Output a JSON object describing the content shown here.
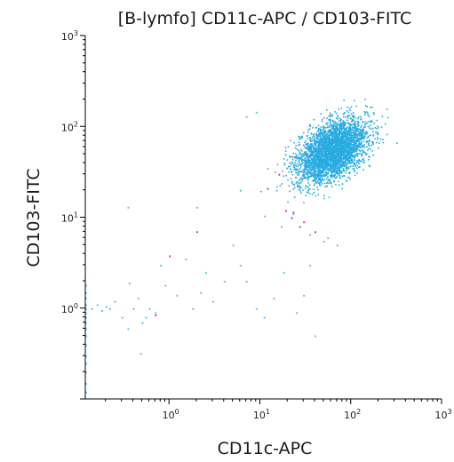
{
  "chart_data": {
    "type": "scatter",
    "title": "[B-lymfo] CD11c-APC / CD103-FITC",
    "xlabel": "CD11c-APC",
    "ylabel": "CD103-FITC",
    "x_scale": "log",
    "y_scale": "log",
    "xlim": [
      0.12,
      1000
    ],
    "ylim": [
      0.1,
      1000
    ],
    "grid": false,
    "x_ticks": [
      {
        "base": "10",
        "exp": "0",
        "value": 1
      },
      {
        "base": "10",
        "exp": "1",
        "value": 10
      },
      {
        "base": "10",
        "exp": "2",
        "value": 100
      },
      {
        "base": "10",
        "exp": "3",
        "value": 1000
      }
    ],
    "y_ticks": [
      {
        "base": "10",
        "exp": "0",
        "value": 1
      },
      {
        "base": "10",
        "exp": "1",
        "value": 10
      },
      {
        "base": "10",
        "exp": "2",
        "value": 100
      },
      {
        "base": "10",
        "exp": "3",
        "value": 1000
      }
    ],
    "colors": {
      "main": "#29abe2",
      "outlier": "#c040c0",
      "axis": "#000000"
    },
    "main_cluster": {
      "center_x": 62,
      "center_y": 55,
      "spread_log_x": 0.19,
      "spread_log_y": 0.17,
      "count": 3500
    },
    "scatter_points": [
      {
        "x": 0.14,
        "y": 1.0
      },
      {
        "x": 0.16,
        "y": 1.1
      },
      {
        "x": 0.18,
        "y": 0.95
      },
      {
        "x": 0.2,
        "y": 1.05
      },
      {
        "x": 0.22,
        "y": 1.0
      },
      {
        "x": 0.25,
        "y": 1.2
      },
      {
        "x": 0.3,
        "y": 0.8
      },
      {
        "x": 0.35,
        "y": 0.6
      },
      {
        "x": 0.4,
        "y": 1.0
      },
      {
        "x": 0.45,
        "y": 1.3
      },
      {
        "x": 0.5,
        "y": 0.7
      },
      {
        "x": 0.55,
        "y": 0.8
      },
      {
        "x": 0.6,
        "y": 1.0
      },
      {
        "x": 0.7,
        "y": 0.9
      },
      {
        "x": 0.8,
        "y": 3.0
      },
      {
        "x": 0.9,
        "y": 1.8
      },
      {
        "x": 1.2,
        "y": 1.4
      },
      {
        "x": 1.5,
        "y": 3.5
      },
      {
        "x": 1.8,
        "y": 1.0
      },
      {
        "x": 2.2,
        "y": 1.5
      },
      {
        "x": 2.5,
        "y": 2.5
      },
      {
        "x": 3.0,
        "y": 1.2
      },
      {
        "x": 4.0,
        "y": 2.0
      },
      {
        "x": 5.0,
        "y": 5.0
      },
      {
        "x": 6.0,
        "y": 3.0
      },
      {
        "x": 7.0,
        "y": 2.0
      },
      {
        "x": 9.0,
        "y": 1.0
      },
      {
        "x": 11.0,
        "y": 0.8
      },
      {
        "x": 14.0,
        "y": 1.3
      },
      {
        "x": 18.0,
        "y": 2.5
      },
      {
        "x": 25.0,
        "y": 0.9
      },
      {
        "x": 30.0,
        "y": 1.4
      },
      {
        "x": 35.0,
        "y": 3.0
      },
      {
        "x": 40.0,
        "y": 0.5
      },
      {
        "x": 50.0,
        "y": 5.5
      },
      {
        "x": 0.35,
        "y": 13.0
      },
      {
        "x": 0.48,
        "y": 0.32
      },
      {
        "x": 0.36,
        "y": 1.9
      },
      {
        "x": 2.0,
        "y": 13.0
      },
      {
        "x": 6.0,
        "y": 20.0
      },
      {
        "x": 7.0,
        "y": 130.0
      },
      {
        "x": 9.0,
        "y": 145.0
      },
      {
        "x": 12.0,
        "y": 35.0
      },
      {
        "x": 15.0,
        "y": 20.0
      },
      {
        "x": 17.0,
        "y": 8.0
      },
      {
        "x": 20.0,
        "y": 15.0
      },
      {
        "x": 23.0,
        "y": 11.0
      },
      {
        "x": 25.0,
        "y": 25.0
      },
      {
        "x": 35.0,
        "y": 6.5
      },
      {
        "x": 55.0,
        "y": 6.0
      },
      {
        "x": 70.0,
        "y": 5.0
      }
    ],
    "outlier_points": [
      {
        "x": 1.0,
        "y": 3.8
      },
      {
        "x": 2.0,
        "y": 7.0
      },
      {
        "x": 0.7,
        "y": 0.85
      },
      {
        "x": 16.0,
        "y": 30.0
      },
      {
        "x": 19.0,
        "y": 12.0
      },
      {
        "x": 22.0,
        "y": 10.0
      },
      {
        "x": 23.0,
        "y": 11.5
      },
      {
        "x": 27.0,
        "y": 8.0
      },
      {
        "x": 30.0,
        "y": 9.0
      },
      {
        "x": 40.0,
        "y": 7.0
      },
      {
        "x": 12.0,
        "y": 21.0
      }
    ],
    "left_edge_points": [
      {
        "x": 0.12,
        "y": 0.12
      },
      {
        "x": 0.12,
        "y": 0.15
      },
      {
        "x": 0.12,
        "y": 0.2
      },
      {
        "x": 0.12,
        "y": 0.25
      },
      {
        "x": 0.12,
        "y": 0.3
      },
      {
        "x": 0.12,
        "y": 0.4
      },
      {
        "x": 0.12,
        "y": 0.5
      },
      {
        "x": 0.12,
        "y": 0.6
      },
      {
        "x": 0.12,
        "y": 0.7
      },
      {
        "x": 0.12,
        "y": 0.8
      },
      {
        "x": 0.12,
        "y": 0.9
      },
      {
        "x": 0.12,
        "y": 1.0
      },
      {
        "x": 0.12,
        "y": 1.1
      },
      {
        "x": 0.12,
        "y": 1.3
      },
      {
        "x": 0.12,
        "y": 1.5
      },
      {
        "x": 0.12,
        "y": 1.8
      }
    ]
  }
}
